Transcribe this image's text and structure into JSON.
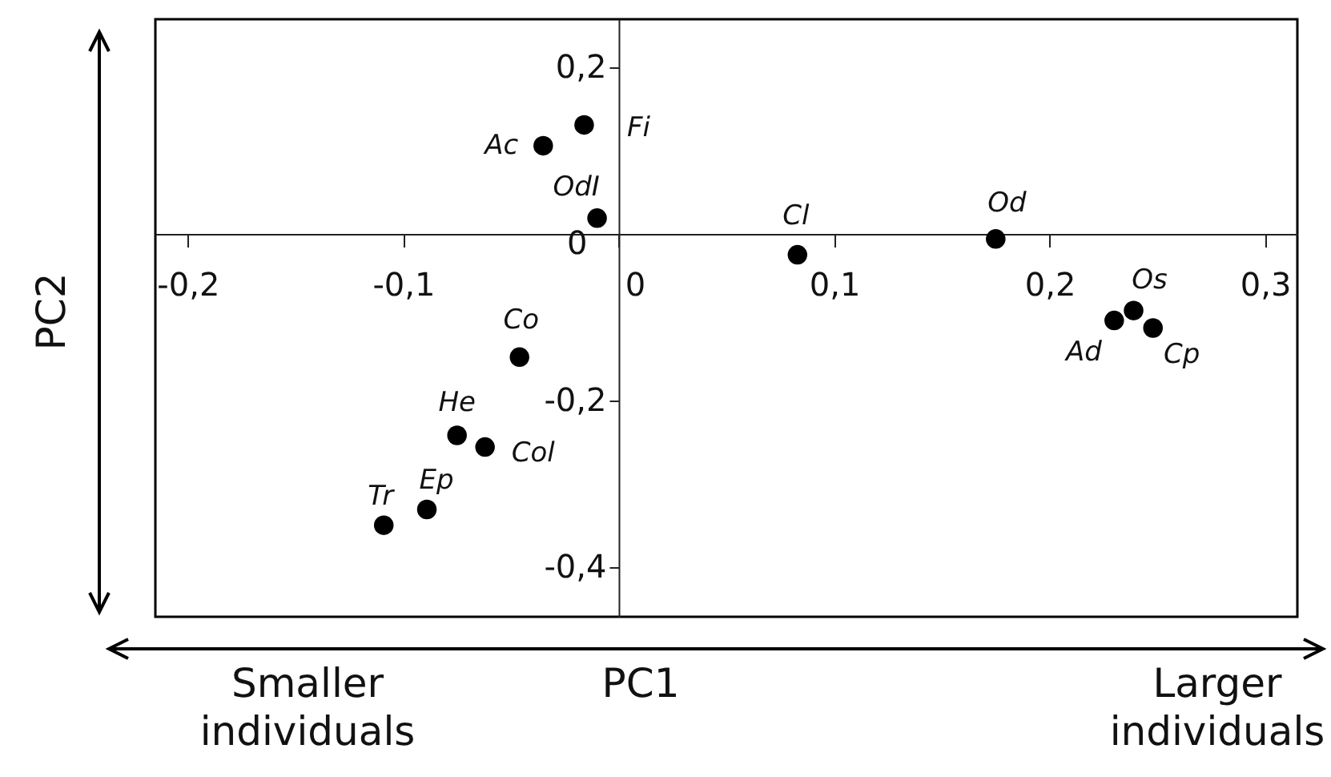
{
  "chart_data": {
    "type": "scatter",
    "xlabel": "PC1",
    "ylabel": "PC2",
    "x": [
      -0.016,
      -0.035,
      -0.01,
      0.083,
      0.175,
      0.239,
      0.23,
      0.248,
      -0.046,
      -0.075,
      -0.062,
      -0.089,
      -0.109
    ],
    "series": [
      {
        "color": "#000000",
        "values": [
          0.131,
          0.106,
          0.019,
          -0.025,
          -0.006,
          -0.092,
          -0.104,
          -0.113,
          -0.148,
          -0.242,
          -0.256,
          -0.331,
          -0.35
        ]
      }
    ],
    "marker": "circle",
    "grid": false,
    "xlim": [
      -0.215,
      0.315
    ],
    "ylim": [
      -0.46,
      0.258
    ],
    "xticks": [
      {
        "value": -0.2,
        "label": "-0,2"
      },
      {
        "value": -0.1,
        "label": "-0,1"
      },
      0,
      {
        "value": 0.1,
        "label": "0,1"
      },
      {
        "value": 0.2,
        "label": "0,2"
      },
      {
        "value": 0.3,
        "label": "0,3"
      }
    ],
    "yticks": [
      {
        "value": -0.4,
        "label": "-0,4"
      },
      {
        "value": -0.2,
        "label": "-0,2"
      },
      0,
      {
        "value": 0.2,
        "label": "0,2"
      }
    ],
    "annotations": [
      {
        "text": "Fi",
        "x": -0.016,
        "y": 0.131
      },
      {
        "text": "Ac",
        "x": -0.035,
        "y": 0.106
      },
      {
        "text": "OdI",
        "x": -0.01,
        "y": 0.019
      },
      {
        "text": "Cl",
        "x": 0.083,
        "y": -0.025
      },
      {
        "text": "Od",
        "x": 0.175,
        "y": -0.006
      },
      {
        "text": "Os",
        "x": 0.239,
        "y": -0.092
      },
      {
        "text": "Ad",
        "x": 0.23,
        "y": -0.104
      },
      {
        "text": "Cp",
        "x": 0.248,
        "y": -0.113
      },
      {
        "text": "Co",
        "x": -0.046,
        "y": -0.148
      },
      {
        "text": "He",
        "x": -0.075,
        "y": -0.242
      },
      {
        "text": "Col",
        "x": -0.062,
        "y": -0.256
      },
      {
        "text": "Ep",
        "x": -0.089,
        "y": -0.331
      },
      {
        "text": "Tr",
        "x": -0.109,
        "y": -0.35
      },
      "Smaller individuals",
      "Larger individuals"
    ]
  }
}
